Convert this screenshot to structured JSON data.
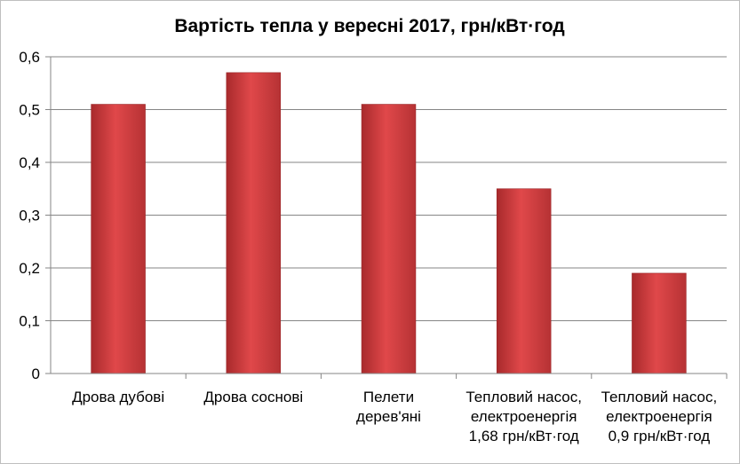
{
  "chart_data": {
    "type": "bar",
    "title": "Вартість тепла у вересні 2017, грн/кВт·год",
    "xlabel": "",
    "ylabel": "",
    "categories": [
      [
        "Дрова дубові"
      ],
      [
        "Дрова соснові"
      ],
      [
        "Пелети",
        "дерев'яні"
      ],
      [
        "Тепловий насос,",
        "електроенергія",
        "1,68 грн/кВт·год"
      ],
      [
        "Тепловий насос,",
        "електроенергія",
        "0,9 грн/кВт·год"
      ]
    ],
    "values": [
      0.51,
      0.57,
      0.51,
      0.35,
      0.19
    ],
    "ylim": [
      0,
      0.6
    ],
    "yticks": [
      "0",
      "0,1",
      "0,2",
      "0,3",
      "0,4",
      "0,5",
      "0,6"
    ],
    "grid": true,
    "legend": "none",
    "bar_color": "#c0393b"
  }
}
